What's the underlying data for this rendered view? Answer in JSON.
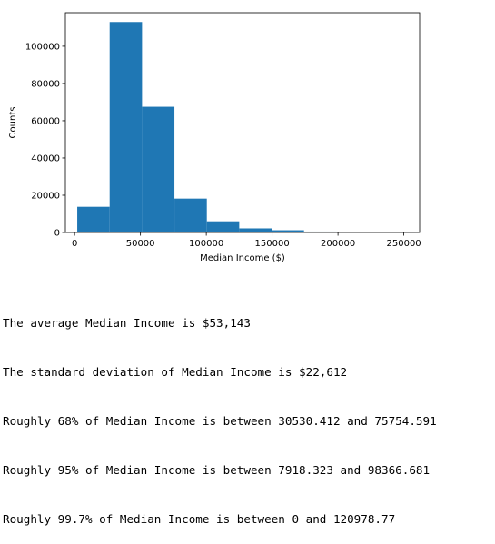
{
  "chart_data": {
    "type": "bar",
    "title": "",
    "xlabel": "Median Income ($)",
    "ylabel": "Counts",
    "xlim": [
      -7000,
      262000
    ],
    "ylim": [
      0,
      118000
    ],
    "bin_edges": [
      2000,
      26600,
      51200,
      75800,
      100400,
      125000,
      149600,
      174200,
      198800,
      223400,
      248000
    ],
    "values": [
      13800,
      113000,
      67500,
      18200,
      6000,
      2200,
      1200,
      500,
      200,
      100
    ],
    "xticks": [
      0,
      50000,
      100000,
      150000,
      200000,
      250000
    ],
    "yticks": [
      0,
      20000,
      40000,
      60000,
      80000,
      100000
    ],
    "grid": false,
    "legend": "none",
    "bar_color": "#1f77b4"
  },
  "output": {
    "lines": [
      "The average Median Income is $53,143",
      "The standard deviation of Median Income is $22,612",
      "Roughly 68% of Median Income is between 30530.412 and 75754.591",
      "Roughly 95% of Median Income is between 7918.323 and 98366.681",
      "Roughly 99.7% of Median Income is between 0 and 120978.77"
    ]
  }
}
